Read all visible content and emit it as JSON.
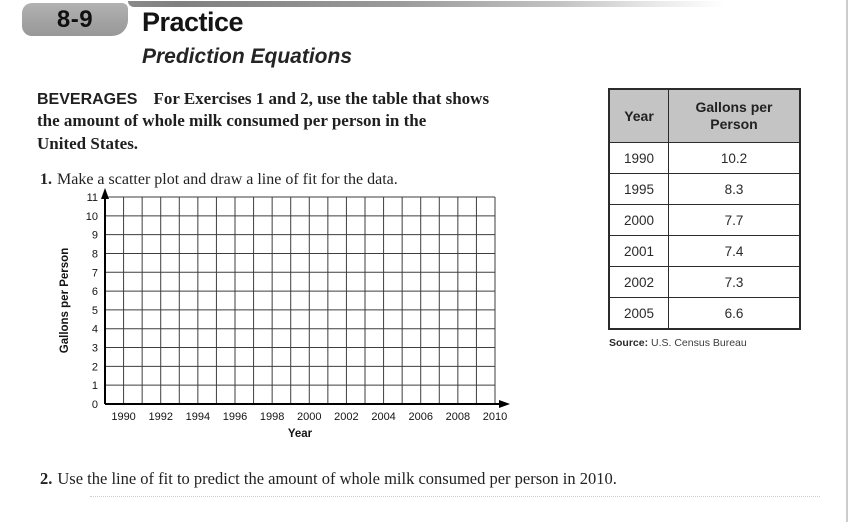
{
  "header": {
    "lesson_number": "8-9",
    "title": "Practice",
    "subtitle": "Prediction Equations"
  },
  "intro": {
    "topic": "BEVERAGES",
    "lines": [
      "For Exercises 1 and 2, use the table that shows",
      "the amount of whole milk consumed per person in the",
      "United States."
    ]
  },
  "exercise1": {
    "number": "1.",
    "text": "Make a scatter plot and draw a line of fit for the data."
  },
  "exercise2": {
    "number": "2.",
    "text": "Use the line of fit to predict the amount of whole milk consumed per person in 2010."
  },
  "chart_data": {
    "type": "scatter",
    "title": "",
    "xlabel": "Year",
    "ylabel": "Gallons per Person",
    "xlim": [
      1989,
      2010
    ],
    "ylim": [
      0,
      11
    ],
    "x_gridline_step": 1,
    "y_gridline_step": 1,
    "x_tick_labels": [
      "1990",
      "1992",
      "1994",
      "1996",
      "1998",
      "2000",
      "2002",
      "2004",
      "2006",
      "2008",
      "2010"
    ],
    "y_tick_labels": [
      "0",
      "1",
      "2",
      "3",
      "4",
      "5",
      "6",
      "7",
      "8",
      "9",
      "10",
      "11"
    ],
    "grid": true,
    "points": []
  },
  "data_table": {
    "headers": [
      "Year",
      "Gallons per Person"
    ],
    "rows": [
      [
        "1990",
        "10.2"
      ],
      [
        "1995",
        "8.3"
      ],
      [
        "2000",
        "7.7"
      ],
      [
        "2001",
        "7.4"
      ],
      [
        "2002",
        "7.3"
      ],
      [
        "2005",
        "6.6"
      ]
    ],
    "source_label": "Source:",
    "source_text": "U.S. Census Bureau"
  },
  "colors": {
    "tab_gray": "#a3a3a3",
    "table_header_bg": "#c4c4c4",
    "table_border": "#2b2b2b",
    "grid_line": "#3e3e3e",
    "axis": "#000000",
    "text": "#1a1a1a"
  }
}
